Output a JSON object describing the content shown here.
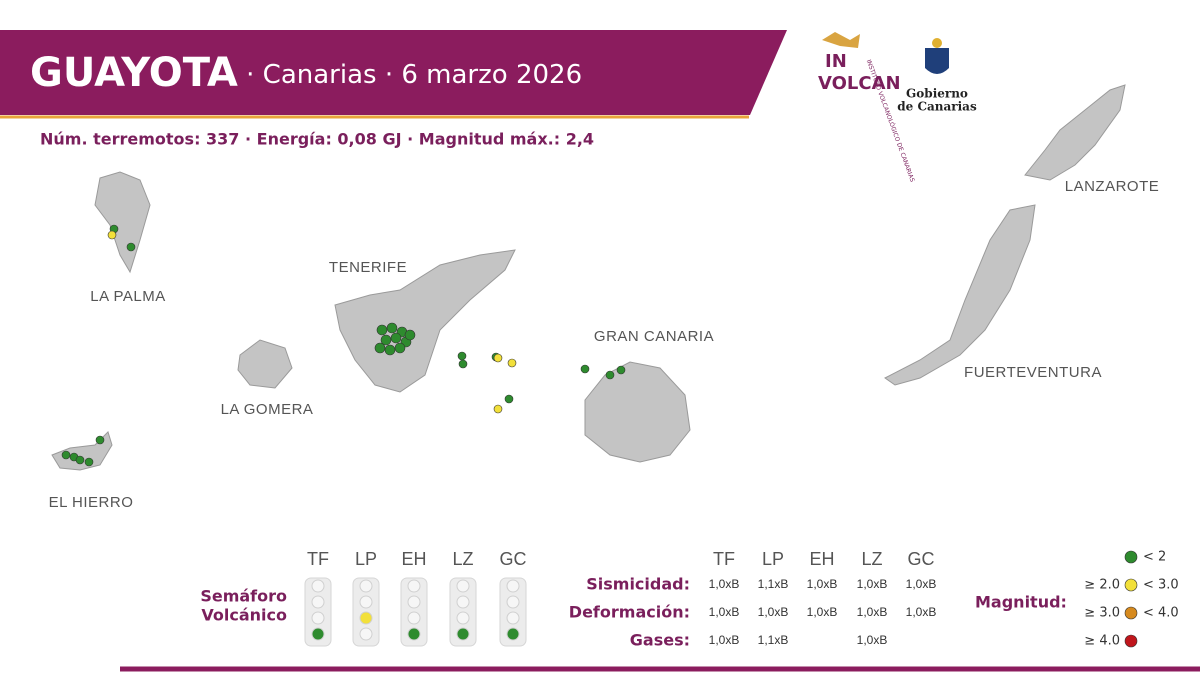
{
  "header": {
    "title": "GUAYOTA",
    "subtitle": " · Canarias · 6 marzo 2026",
    "stats": "Núm. terremotos: 337 · Energía: 0,08 GJ · Magnitud  máx.: 2,4"
  },
  "logos": {
    "involcan": {
      "name": [
        "IN",
        "VOLCAN"
      ],
      "full": "INSTITUTO VOLCANOLÓGICO DE CANARIAS"
    },
    "gobierno": [
      "Gobierno",
      "de Canarias"
    ]
  },
  "islands": [
    {
      "label": "LA PALMA"
    },
    {
      "label": "TENERIFE"
    },
    {
      "label": "LA GOMERA"
    },
    {
      "label": "GRAN CANARIA"
    },
    {
      "label": "EL HIERRO"
    },
    {
      "label": "LANZAROTE"
    },
    {
      "label": "FUERTEVENTURA"
    }
  ],
  "semaforo": {
    "title": [
      "Semáforo",
      "Volcánico"
    ],
    "islands": [
      "TF",
      "LP",
      "EH",
      "LZ",
      "GC"
    ],
    "colors": [
      "#2e8b2e",
      "#f2e03a",
      "#2e8b2e",
      "#2e8b2e",
      "#2e8b2e"
    ]
  },
  "table": {
    "columns": [
      "TF",
      "LP",
      "EH",
      "LZ",
      "GC"
    ],
    "rows": [
      {
        "label": "Sismicidad:",
        "values": [
          "1,0xB",
          "1,1xB",
          "1,0xB",
          "1,0xB",
          "1,0xB"
        ]
      },
      {
        "label": "Deformación:",
        "values": [
          "1,0xB",
          "1,0xB",
          "1,0xB",
          "1,0xB",
          "1,0xB"
        ]
      },
      {
        "label": "Gases:",
        "values": [
          "1,0xB",
          "1,1xB",
          null,
          "1,0xB",
          null
        ]
      }
    ]
  },
  "legend": {
    "title": "Magnitud:",
    "items": [
      {
        "right": "< 2",
        "color": "#2e8b2e"
      },
      {
        "left": "≥ 2.0",
        "right": "< 3.0",
        "color": "#f2e03a"
      },
      {
        "left": "≥ 3.0",
        "right": "< 4.0",
        "color": "#d68a1e"
      },
      {
        "left": "≥ 4.0",
        "color": "#c0161c"
      }
    ]
  }
}
